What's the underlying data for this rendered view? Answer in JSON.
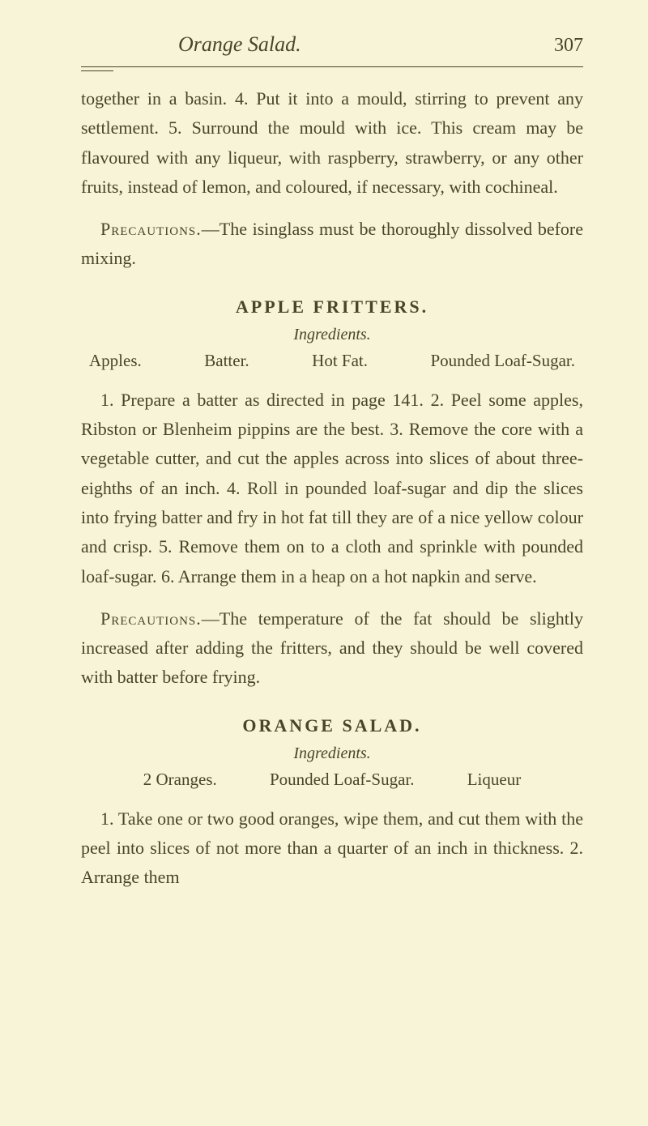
{
  "header": {
    "title": "Orange Salad.",
    "page_number": "307"
  },
  "intro_paragraph": {
    "text_before_4": "together in a basin. ",
    "step4": "4.",
    "text_after_4": " Put it into a mould, stirring to prevent any settlement. ",
    "step5": "5.",
    "text_after_5": " Surround the mould with ice. This cream may be flavoured with any liqueur, with raspberry, strawberry, or any other fruits, instead of lemon, and coloured, if necessary, with cochineal."
  },
  "precautions1": {
    "label": "Precautions.",
    "text": "—The isinglass must be thoroughly dissolved before mixing."
  },
  "recipe1": {
    "title": "APPLE FRITTERS.",
    "ingredients_label": "Ingredients.",
    "ingredients": {
      "i1": "Apples.",
      "i2": "Batter.",
      "i3": "Hot Fat.",
      "i4": "Pounded Loaf-Sugar."
    },
    "body": {
      "s1": "1.",
      "t1": " Prepare a batter as directed in page 141. ",
      "s2": "2.",
      "t2": " Peel some apples, Ribston or Blenheim pippins are the best. ",
      "s3": "3.",
      "t3": " Remove the core with a vegetable cutter, and cut the apples across into slices of about three-eighths of an inch. ",
      "s4": "4.",
      "t4": " Roll in pounded loaf-sugar and dip the slices into frying batter and fry in hot fat till they are of a nice yellow colour and crisp. ",
      "s5": "5.",
      "t5": " Remove them on to a cloth and sprinkle with pounded loaf-sugar. ",
      "s6": "6.",
      "t6": " Arrange them in a heap on a hot napkin and serve."
    },
    "precautions": {
      "label": "Precautions.",
      "text": "—The temperature of the fat should be slightly increased after adding the fritters, and they should be well covered with batter before frying."
    }
  },
  "recipe2": {
    "title": "ORANGE SALAD.",
    "ingredients_label": "Ingredients.",
    "ingredients": {
      "i1": "2 Oranges.",
      "i2": "Pounded Loaf-Sugar.",
      "i3": "Liqueur"
    },
    "body": {
      "s1": "1.",
      "t1": " Take one or two good oranges, wipe them, and cut them with the peel into slices of not more than a quarter of an inch in thickness. ",
      "s2": "2.",
      "t2": " Arrange them"
    }
  }
}
